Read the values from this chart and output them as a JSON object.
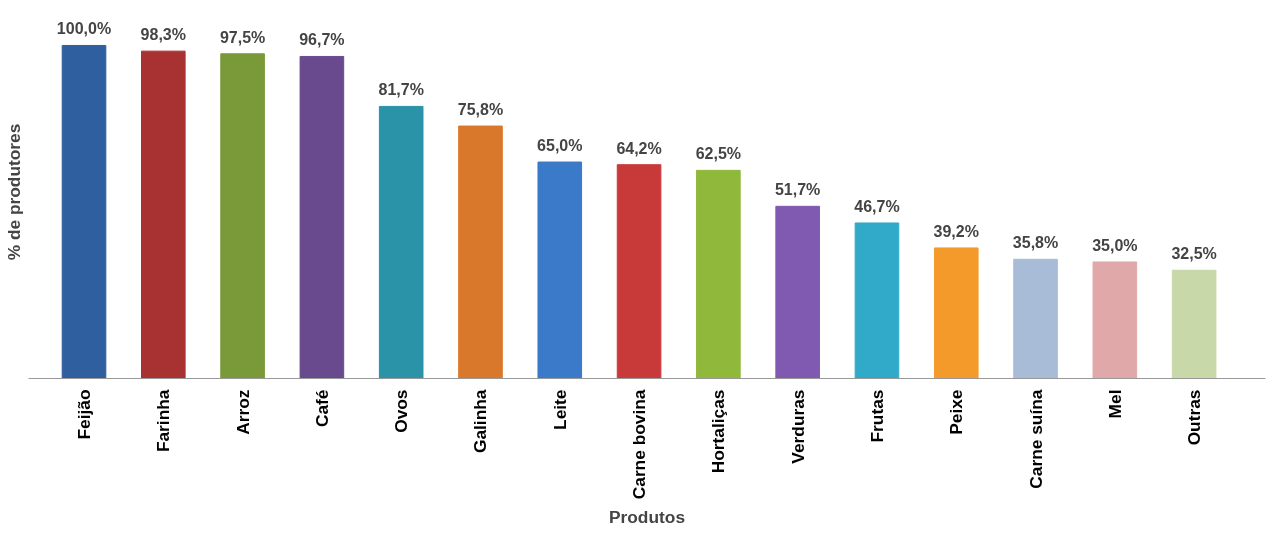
{
  "chart_data": {
    "type": "bar",
    "xlabel": "Produtos",
    "ylabel": "% de produtores",
    "categories": [
      "Feijão",
      "Farinha",
      "Arroz",
      "Café",
      "Ovos",
      "Galinha",
      "Leite",
      "Carne bovina",
      "Hortaliças",
      "Verduras",
      "Frutas",
      "Peixe",
      "Carne suína",
      "Mel",
      "Outras"
    ],
    "values": [
      100.0,
      98.3,
      97.5,
      96.7,
      81.7,
      75.8,
      65.0,
      64.2,
      62.5,
      51.7,
      46.7,
      39.2,
      35.8,
      35.0,
      32.5
    ],
    "value_labels": [
      "100,0%",
      "98,3%",
      "97,5%",
      "96,7%",
      "81,7%",
      "75,8%",
      "65,0%",
      "64,2%",
      "62,5%",
      "51,7%",
      "46,7%",
      "39,2%",
      "35,8%",
      "35,0%",
      "32,5%"
    ],
    "colors": [
      "#2f5f9f",
      "#a83232",
      "#7a9a3a",
      "#6a4a8e",
      "#2a93a8",
      "#d9782a",
      "#3a7ac8",
      "#c83a3a",
      "#90b83a",
      "#7f5ab0",
      "#30aac8",
      "#f39a2a",
      "#a8bcd8",
      "#e0a8a8",
      "#c8d8a8"
    ],
    "tick_labels": "x",
    "grid": false
  }
}
